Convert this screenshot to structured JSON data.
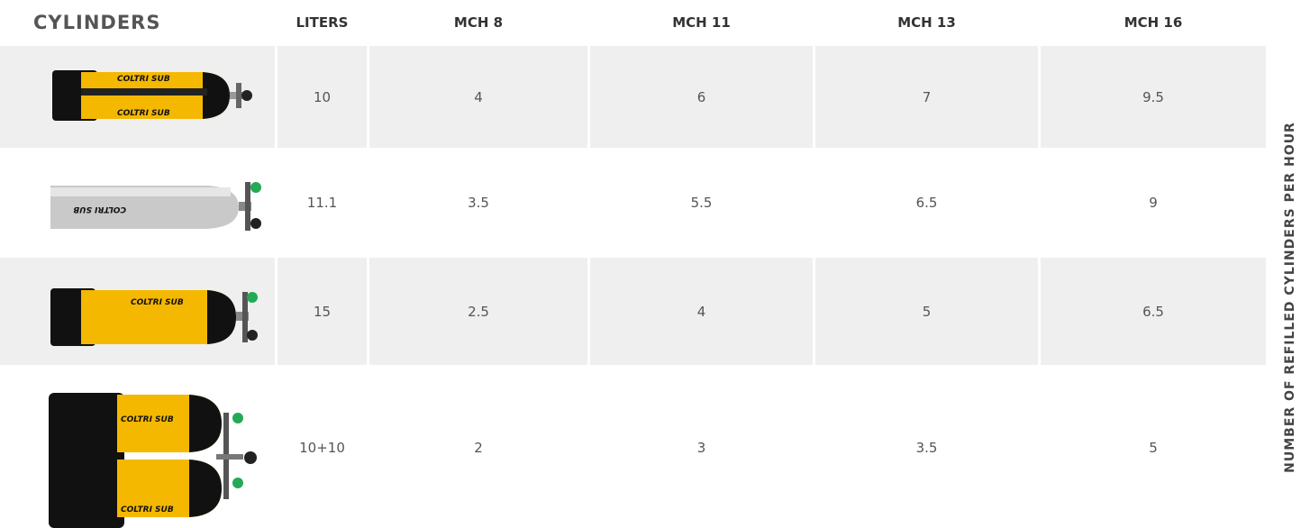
{
  "header": {
    "cylinders": "CYLINDERS",
    "liters": "LITERS",
    "models": [
      "MCH 8",
      "MCH 11",
      "MCH 13",
      "MCH 16"
    ]
  },
  "side_label": "NUMBER OF REFILLED CYLINDERS PER HOUR",
  "brand": "COLTRI SUB",
  "rows": [
    {
      "liters": "10",
      "refills": [
        "4",
        "6",
        "7",
        "9.5"
      ]
    },
    {
      "liters": "11.1",
      "refills": [
        "3.5",
        "5.5",
        "6.5",
        "9"
      ]
    },
    {
      "liters": "15",
      "refills": [
        "2.5",
        "4",
        "5",
        "6.5"
      ]
    },
    {
      "liters": "10+10",
      "refills": [
        "2",
        "3",
        "3.5",
        "5"
      ]
    }
  ]
}
